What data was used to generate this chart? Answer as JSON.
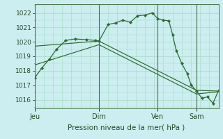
{
  "title": "Pression niveau de la mer( hPa )",
  "bg_color": "#cceef0",
  "grid_color": "#aaddcc",
  "line_color": "#2d6a2d",
  "spine_color": "#4a7a4a",
  "ylim": [
    1015.4,
    1022.6
  ],
  "yticks": [
    1016,
    1017,
    1018,
    1019,
    1020,
    1021,
    1022
  ],
  "day_labels": [
    "Jeu",
    "Dim",
    "Ven",
    "Sam"
  ],
  "day_positions": [
    0.0,
    0.35,
    0.67,
    0.88
  ],
  "xlim": [
    0.0,
    1.0
  ],
  "line1_x": [
    0.0,
    0.04,
    0.08,
    0.12,
    0.17,
    0.22,
    0.28,
    0.33,
    0.35,
    0.4,
    0.44,
    0.48,
    0.52,
    0.56,
    0.6,
    0.64,
    0.67,
    0.7,
    0.73,
    0.75,
    0.77,
    0.8,
    0.83,
    0.85,
    0.88,
    0.91,
    0.94,
    0.97,
    1.0
  ],
  "line1_y": [
    1017.5,
    1018.2,
    1018.8,
    1019.5,
    1020.1,
    1020.2,
    1020.15,
    1020.1,
    1020.05,
    1021.2,
    1021.3,
    1021.5,
    1021.35,
    1021.8,
    1021.85,
    1022.0,
    1021.6,
    1021.5,
    1021.45,
    1020.5,
    1019.4,
    1018.5,
    1017.8,
    1017.05,
    1016.6,
    1016.1,
    1016.2,
    1015.75,
    1016.65
  ],
  "line2_x": [
    0.0,
    0.35,
    0.88,
    1.0
  ],
  "line2_y": [
    1019.7,
    1020.05,
    1016.65,
    1016.6
  ],
  "line3_x": [
    0.0,
    0.35,
    0.88,
    1.0
  ],
  "line3_y": [
    1018.4,
    1019.8,
    1016.4,
    1016.55
  ]
}
